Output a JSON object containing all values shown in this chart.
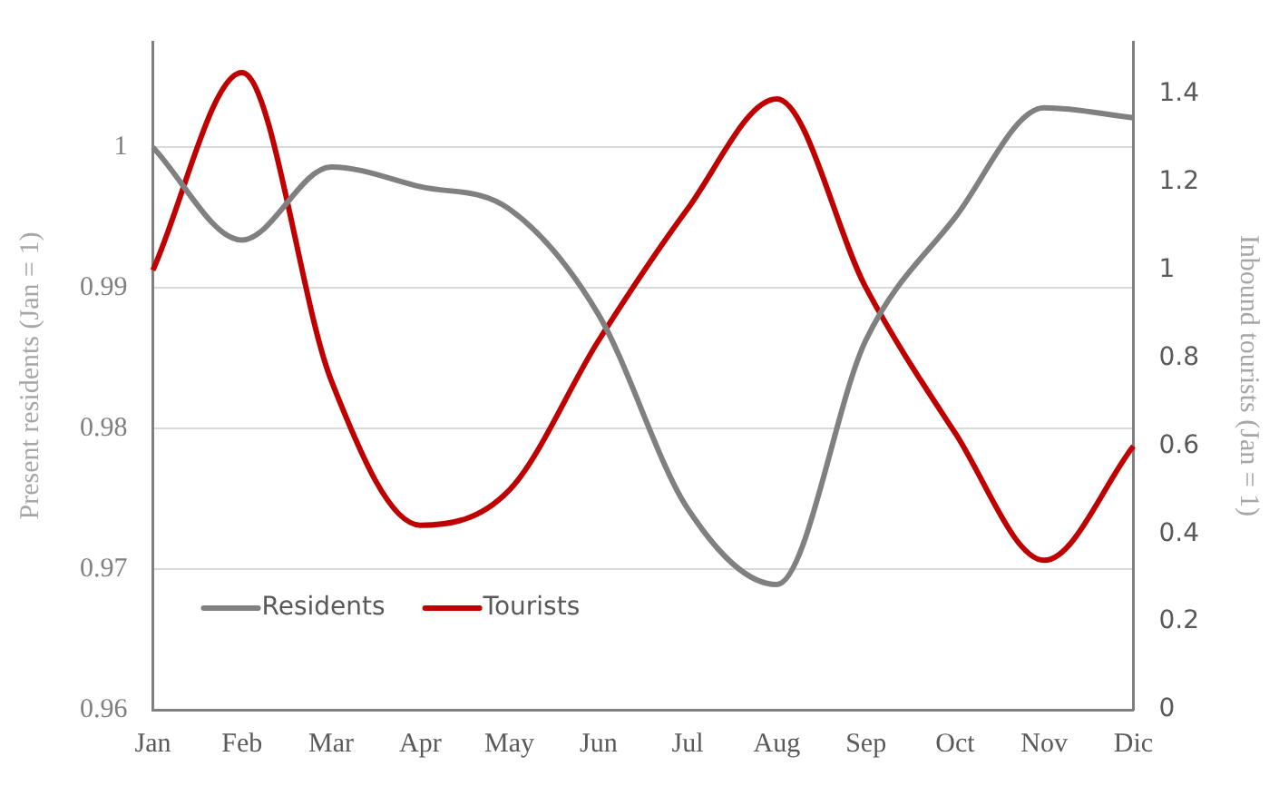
{
  "chart_data": {
    "type": "line",
    "ylabel": "Present residents (Jan = 1)",
    "y2label": "Inbound tourists (Jan = 1)",
    "categories": [
      "Jan",
      "Feb",
      "Mar",
      "Apr",
      "May",
      "Jun",
      "Jul",
      "Aug",
      "Sep",
      "Oct",
      "Nov",
      "Dic"
    ],
    "series": [
      {
        "name": "Residents",
        "color": "#808080",
        "values": [
          1.0,
          0.9934,
          0.9986,
          0.9972,
          0.9956,
          0.9881,
          0.9743,
          0.9689,
          0.9863,
          0.995,
          1.0028,
          1.0021
        ]
      },
      {
        "name": "Tourists",
        "color": "#c00000",
        "axis": "y2",
        "values": [
          1.0,
          1.45,
          0.75,
          0.42,
          0.5,
          0.84,
          1.14,
          1.39,
          0.96,
          0.63,
          0.34,
          0.6
        ]
      }
    ],
    "ylim": [
      0.96,
      1.0075
    ],
    "yticks": [
      0.96,
      0.97,
      0.98,
      0.99,
      1
    ],
    "y2lim": [
      0,
      1.52
    ],
    "y2ticks": [
      0,
      0.2,
      0.4,
      0.6,
      0.8,
      1,
      1.2,
      1.4
    ],
    "grid": "y",
    "legend": "bottom left",
    "marker": "none",
    "line_style": "solid"
  }
}
